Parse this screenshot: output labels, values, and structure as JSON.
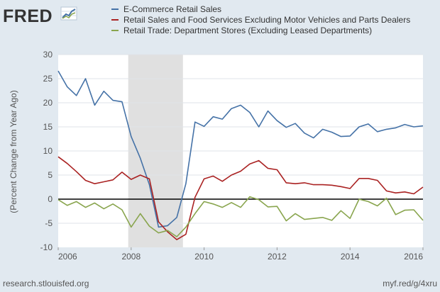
{
  "logo": {
    "text": "FRED",
    "icon": "fred-chart-icon"
  },
  "footer": {
    "left": "research.stlouisfed.org",
    "right": "myf.red/g/4xru"
  },
  "colors": {
    "background": "#e1e9f0",
    "plot_background": "#ffffff",
    "recession": "#e0e0e0",
    "zero_line": "#000000"
  },
  "chart_data": {
    "type": "line",
    "title": "",
    "xlabel": "",
    "ylabel": "(Percent Change from Year Ago)",
    "xlim": [
      2006,
      2016
    ],
    "ylim": [
      -10,
      30
    ],
    "x_ticks": [
      "2006",
      "2008",
      "2010",
      "2012",
      "2014",
      "2016"
    ],
    "y_ticks": [
      "-10",
      "-5",
      "0",
      "5",
      "10",
      "15",
      "20",
      "25",
      "30"
    ],
    "grid": true,
    "legend_position": "top",
    "recession_shading": [
      [
        2007.92,
        2009.42
      ]
    ],
    "x": [
      2006.0,
      2006.25,
      2006.5,
      2006.75,
      2007.0,
      2007.25,
      2007.5,
      2007.75,
      2008.0,
      2008.25,
      2008.5,
      2008.75,
      2009.0,
      2009.25,
      2009.5,
      2009.75,
      2010.0,
      2010.25,
      2010.5,
      2010.75,
      2011.0,
      2011.25,
      2011.5,
      2011.75,
      2012.0,
      2012.25,
      2012.5,
      2012.75,
      2013.0,
      2013.25,
      2013.5,
      2013.75,
      2014.0,
      2014.25,
      2014.5,
      2014.75,
      2015.0,
      2015.25,
      2015.5,
      2015.75,
      2016.0
    ],
    "series": [
      {
        "name": "E-Commerce Retail Sales",
        "color": "#4572a7",
        "values": [
          26.6,
          23.3,
          21.5,
          25.0,
          19.5,
          22.4,
          20.5,
          20.2,
          13.0,
          8.5,
          3.0,
          -5.8,
          -5.5,
          -3.8,
          3.2,
          16.0,
          15.1,
          17.1,
          16.6,
          18.8,
          19.5,
          18.0,
          15.0,
          18.3,
          16.3,
          14.9,
          15.7,
          13.7,
          12.7,
          14.5,
          13.9,
          13.0,
          13.1,
          15.0,
          15.6,
          14.0,
          14.5,
          14.8,
          15.5,
          15.0,
          15.2
        ]
      },
      {
        "name": "Retail Sales and Food Services Excluding Motor Vehicles and Parts Dealers",
        "color": "#aa2222",
        "values": [
          8.8,
          7.4,
          5.7,
          3.9,
          3.2,
          3.6,
          4.0,
          5.6,
          4.1,
          5.0,
          4.2,
          -4.7,
          -6.8,
          -8.4,
          -7.3,
          0.4,
          4.2,
          4.8,
          3.7,
          5.0,
          5.8,
          7.3,
          8.0,
          6.4,
          6.1,
          3.4,
          3.2,
          3.4,
          3.0,
          3.0,
          2.9,
          2.6,
          2.2,
          4.3,
          4.3,
          3.9,
          1.7,
          1.3,
          1.5,
          1.1,
          2.5
        ]
      },
      {
        "name": "Retail Trade: Department Stores (Excluding Leased Departments)",
        "color": "#89a54e",
        "values": [
          -0.1,
          -1.3,
          -0.5,
          -1.7,
          -0.8,
          -2.0,
          -1.0,
          -2.2,
          -5.8,
          -3.0,
          -5.6,
          -7.0,
          -6.5,
          -7.8,
          -5.8,
          -3.0,
          -0.5,
          -1.0,
          -1.7,
          -0.7,
          -1.7,
          0.5,
          -0.1,
          -1.6,
          -1.5,
          -4.5,
          -3.0,
          -4.2,
          -4.0,
          -3.8,
          -4.4,
          -2.4,
          -4.0,
          0.0,
          -0.5,
          -1.4,
          0.2,
          -3.2,
          -2.3,
          -2.2,
          -4.4
        ]
      }
    ]
  }
}
